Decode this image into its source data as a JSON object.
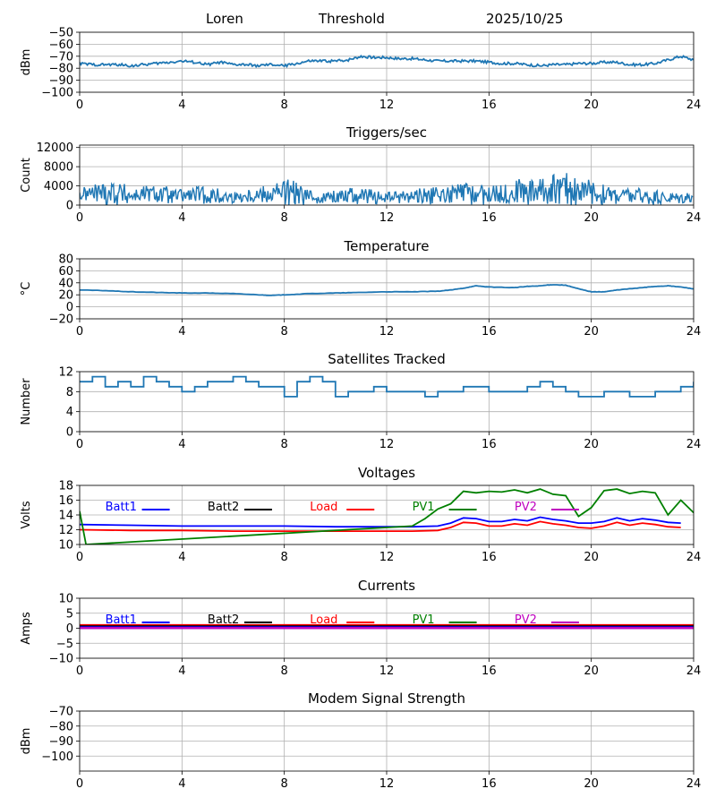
{
  "header": {
    "station": "Loren",
    "mode": "Threshold",
    "date": "2025/10/25"
  },
  "colors": {
    "series": "#1f77b4",
    "grid": "#b0b0b0",
    "batt1": "#0000ff",
    "batt2": "#000000",
    "load": "#ff0000",
    "pv1": "#008000",
    "pv2": "#bf00bf"
  },
  "chart_data": [
    {
      "id": "signal",
      "type": "line",
      "title": "",
      "ylabel": "dBm",
      "xlim": [
        0,
        24
      ],
      "xticks": [
        "0",
        "4",
        "8",
        "12",
        "16",
        "20",
        "24"
      ],
      "ylim": [
        -100,
        -50
      ],
      "yticks": [
        "−50",
        "−60",
        "−70",
        "−80",
        "−90",
        "−100"
      ],
      "series": [
        {
          "name": "signal",
          "x": [
            0,
            0.5,
            1,
            1.5,
            2,
            2.5,
            3,
            3.5,
            4,
            4.5,
            5,
            5.5,
            6,
            6.5,
            7,
            7.5,
            8,
            8.5,
            9,
            9.5,
            10,
            10.5,
            11,
            11.5,
            12,
            12.5,
            13,
            13.5,
            14,
            14.5,
            15,
            15.5,
            16,
            16.5,
            17,
            17.5,
            18,
            18.5,
            19,
            19.5,
            20,
            20.5,
            21,
            21.5,
            22,
            22.5,
            23,
            23.5,
            24
          ],
          "values": [
            -76,
            -77,
            -77,
            -77,
            -78,
            -77,
            -76,
            -75,
            -74,
            -75,
            -77,
            -75,
            -77,
            -77,
            -78,
            -77,
            -78,
            -76,
            -74,
            -74,
            -74,
            -73,
            -70,
            -71,
            -71,
            -72,
            -72,
            -73,
            -74,
            -74,
            -74,
            -74,
            -75,
            -76,
            -76,
            -77,
            -78,
            -77,
            -77,
            -76,
            -76,
            -75,
            -75,
            -77,
            -77,
            -76,
            -73,
            -70,
            -73
          ]
        }
      ]
    },
    {
      "id": "triggers",
      "type": "line",
      "title": "Triggers/sec",
      "ylabel": "Count",
      "xlim": [
        0,
        24
      ],
      "xticks": [
        "0",
        "4",
        "8",
        "12",
        "16",
        "20",
        "24"
      ],
      "ylim": [
        0,
        12500
      ],
      "yticks": [
        "12000",
        "8000",
        "4000",
        "0"
      ],
      "series": [
        {
          "name": "triggers",
          "x": [
            0,
            0.5,
            1,
            1.5,
            2,
            2.5,
            3,
            3.5,
            4,
            4.5,
            5,
            5.5,
            6,
            6.5,
            7,
            7.5,
            8,
            8.5,
            9,
            9.5,
            10,
            10.5,
            11,
            11.5,
            12,
            12.5,
            13,
            13.5,
            14,
            14.5,
            15,
            15.5,
            16,
            16.5,
            17,
            17.5,
            18,
            18.5,
            19,
            19.5,
            20,
            20.5,
            21,
            21.5,
            22,
            22.5,
            23,
            23.5,
            24
          ],
          "values": [
            2100,
            2500,
            2800,
            2600,
            1900,
            2300,
            2400,
            1800,
            1900,
            2200,
            2000,
            1700,
            1600,
            1900,
            2200,
            2500,
            2800,
            2100,
            1700,
            1600,
            1800,
            2200,
            1900,
            1600,
            1500,
            1700,
            1800,
            2000,
            1900,
            2200,
            2500,
            2300,
            2100,
            2400,
            2700,
            3000,
            3200,
            3300,
            3600,
            3000,
            2500,
            2200,
            2000,
            1900,
            1800,
            1600,
            1500,
            1500,
            2000
          ],
          "spread": [
            1500,
            2000,
            3000,
            2200,
            1500,
            1800,
            2000,
            1500,
            1500,
            1800,
            1800,
            1400,
            1200,
            1500,
            2000,
            2400,
            3000,
            2000,
            1400,
            1200,
            1500,
            1800,
            1600,
            1300,
            1200,
            1400,
            1600,
            1800,
            1700,
            2000,
            2300,
            2100,
            1900,
            2200,
            2600,
            2900,
            3000,
            3200,
            3500,
            2800,
            2300,
            2000,
            1800,
            1700,
            1600,
            1400,
            1300,
            1300,
            1800
          ]
        }
      ]
    },
    {
      "id": "temperature",
      "type": "line",
      "title": "Temperature",
      "ylabel": "°C",
      "xlim": [
        0,
        24
      ],
      "xticks": [
        "0",
        "4",
        "8",
        "12",
        "16",
        "20",
        "24"
      ],
      "ylim": [
        -20,
        80
      ],
      "yticks": [
        "80",
        "60",
        "40",
        "20",
        "0",
        "−20"
      ],
      "series": [
        {
          "name": "temperature",
          "x": [
            0,
            1,
            2,
            3,
            4,
            5,
            6,
            7,
            7.5,
            8,
            9,
            10,
            11,
            12,
            13,
            14,
            14.5,
            15,
            15.5,
            16,
            17,
            17.5,
            18,
            18.5,
            19,
            19.5,
            20,
            20.5,
            21,
            22,
            22.5,
            23,
            23.5,
            24
          ],
          "values": [
            28,
            27,
            25,
            24,
            23,
            23,
            22,
            20,
            19,
            20,
            22,
            23,
            24,
            25,
            25,
            26,
            28,
            31,
            35,
            33,
            32,
            34,
            35,
            37,
            36,
            30,
            25,
            25,
            28,
            32,
            34,
            35,
            33,
            30
          ]
        }
      ]
    },
    {
      "id": "satellites",
      "type": "line",
      "title": "Satellites Tracked",
      "ylabel": "Number",
      "xlim": [
        0,
        24
      ],
      "xticks": [
        "0",
        "4",
        "8",
        "12",
        "16",
        "20",
        "24"
      ],
      "ylim": [
        0,
        12
      ],
      "yticks": [
        "12",
        "8",
        "4",
        "0"
      ],
      "series": [
        {
          "name": "satellites",
          "x": [
            0,
            0.5,
            1,
            1.5,
            2,
            2.5,
            3,
            3.5,
            4,
            4.5,
            5,
            5.5,
            6,
            6.5,
            7,
            7.5,
            8,
            8.5,
            9,
            9.5,
            10,
            10.5,
            11,
            11.5,
            12,
            12.5,
            13,
            13.5,
            14,
            14.5,
            15,
            15.5,
            16,
            16.5,
            17,
            17.5,
            18,
            18.5,
            19,
            19.5,
            20,
            20.5,
            21,
            21.5,
            22,
            22.5,
            23,
            23.5,
            24
          ],
          "values": [
            10,
            11,
            9,
            10,
            9,
            11,
            10,
            9,
            8,
            9,
            10,
            10,
            11,
            10,
            9,
            9,
            7,
            10,
            11,
            10,
            7,
            8,
            8,
            9,
            8,
            8,
            8,
            7,
            8,
            8,
            9,
            9,
            8,
            8,
            8,
            9,
            10,
            9,
            8,
            7,
            7,
            8,
            8,
            7,
            7,
            8,
            8,
            9,
            10
          ]
        }
      ]
    },
    {
      "id": "voltages",
      "type": "line",
      "title": "Voltages",
      "ylabel": "Volts",
      "xlim": [
        0,
        24
      ],
      "xticks": [
        "0",
        "4",
        "8",
        "12",
        "16",
        "20",
        "24"
      ],
      "ylim": [
        10,
        18
      ],
      "yticks": [
        "18",
        "16",
        "14",
        "12",
        "10"
      ],
      "legend": [
        "Batt1",
        "Batt2",
        "Load",
        "PV1",
        "PV2"
      ],
      "series": [
        {
          "name": "Batt1",
          "color": "#0000ff",
          "x": [
            0,
            2,
            4,
            6,
            8,
            10,
            12,
            13,
            14,
            14.5,
            15,
            15.5,
            16,
            16.5,
            17,
            17.5,
            18,
            18.5,
            19,
            19.5,
            20,
            20.5,
            21,
            21.5,
            22,
            22.5,
            23,
            23.5
          ],
          "values": [
            12.7,
            12.6,
            12.5,
            12.5,
            12.5,
            12.4,
            12.4,
            12.4,
            12.5,
            12.9,
            13.6,
            13.5,
            13.1,
            13.1,
            13.4,
            13.2,
            13.7,
            13.4,
            13.2,
            12.9,
            12.9,
            13.1,
            13.6,
            13.2,
            13.5,
            13.3,
            13.0,
            12.9
          ]
        },
        {
          "name": "Batt2",
          "color": "#000000",
          "x": [],
          "values": []
        },
        {
          "name": "Load",
          "color": "#ff0000",
          "x": [
            0,
            2,
            4,
            6,
            8,
            10,
            12,
            13,
            14,
            14.5,
            15,
            15.5,
            16,
            16.5,
            17,
            17.5,
            18,
            18.5,
            19,
            19.5,
            20,
            20.5,
            21,
            21.5,
            22,
            22.5,
            23,
            23.5
          ],
          "values": [
            12.0,
            11.9,
            11.9,
            11.8,
            11.8,
            11.8,
            11.8,
            11.8,
            11.9,
            12.3,
            13.0,
            12.9,
            12.5,
            12.5,
            12.8,
            12.6,
            13.1,
            12.8,
            12.6,
            12.3,
            12.2,
            12.5,
            13.0,
            12.6,
            12.9,
            12.7,
            12.4,
            12.3
          ]
        },
        {
          "name": "PV1",
          "color": "#008000",
          "x": [
            0,
            0.25,
            13,
            13.5,
            14,
            14.5,
            15,
            15.5,
            16,
            16.5,
            17,
            17.5,
            18,
            18.5,
            19,
            19.5,
            20,
            20.5,
            21,
            21.5,
            22,
            22.5,
            23,
            23.5,
            24
          ],
          "values": [
            14.5,
            10,
            12.5,
            13.5,
            14.8,
            15.5,
            17.2,
            17.0,
            17.2,
            17.1,
            17.4,
            17.0,
            17.5,
            16.8,
            16.6,
            13.8,
            15.0,
            17.3,
            17.5,
            16.9,
            17.2,
            17.0,
            14.0,
            16.0,
            14.3
          ]
        },
        {
          "name": "PV2",
          "color": "#bf00bf",
          "x": [],
          "values": []
        }
      ]
    },
    {
      "id": "currents",
      "type": "line",
      "title": "Currents",
      "ylabel": "Amps",
      "xlim": [
        0,
        24
      ],
      "xticks": [
        "0",
        "4",
        "8",
        "12",
        "16",
        "20",
        "24"
      ],
      "ylim": [
        -10,
        10
      ],
      "yticks": [
        "10",
        "5",
        "0",
        "−5",
        "−10"
      ],
      "legend": [
        "Batt1",
        "Batt2",
        "Load",
        "PV1",
        "PV2"
      ],
      "series": [
        {
          "name": "Load",
          "color": "#ff0000",
          "x": [
            0,
            24
          ],
          "values": [
            1.0,
            1.0
          ]
        },
        {
          "name": "Batt2",
          "color": "#000000",
          "x": [
            0,
            24
          ],
          "values": [
            0.6,
            0.6
          ]
        },
        {
          "name": "Batt1",
          "color": "#0000ff",
          "x": [
            0,
            24
          ],
          "values": [
            0.3,
            0.3
          ]
        },
        {
          "name": "PV1",
          "color": "#008000",
          "x": [
            0,
            24
          ],
          "values": [
            0.1,
            0.1
          ]
        },
        {
          "name": "PV2",
          "color": "#bf00bf",
          "x": [
            0,
            24
          ],
          "values": [
            0.05,
            0.05
          ]
        }
      ]
    },
    {
      "id": "modem",
      "type": "line",
      "title": "Modem Signal Strength",
      "ylabel": "dBm",
      "xlim": [
        0,
        24
      ],
      "xticks": [
        "0",
        "4",
        "8",
        "12",
        "16",
        "20",
        "24"
      ],
      "ylim": [
        -110,
        -70
      ],
      "yticks": [
        "−70",
        "−80",
        "−90",
        "−100"
      ],
      "series": []
    }
  ]
}
